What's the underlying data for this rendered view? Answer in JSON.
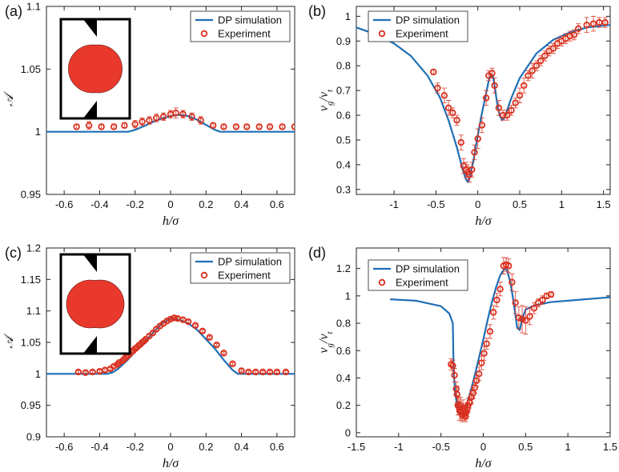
{
  "figure": {
    "panels": [
      "(a)",
      "(b)",
      "(c)",
      "(d)"
    ]
  },
  "colors": {
    "simulation": "#1f6fb5",
    "experiment": "#d9301e",
    "axes": "#222222",
    "particle_fill": "#e8392c"
  },
  "chart_data": [
    {
      "id": "a",
      "type": "line+scatter",
      "panel_label": "(a)",
      "xlabel": "h/σ",
      "ylabel": "𝒜",
      "xlim": [
        -0.7,
        0.7
      ],
      "ylim": [
        0.95,
        1.1
      ],
      "xticks": [
        "-0.6",
        "-0.4",
        "-0.2",
        "0",
        "0.2",
        "0.4",
        "0.6"
      ],
      "yticks": [
        "0.95",
        "1",
        "1.05",
        "1.1"
      ],
      "xtick_values": [
        -0.6,
        -0.4,
        -0.2,
        0,
        0.2,
        0.4,
        0.6
      ],
      "ytick_values": [
        0.95,
        1.0,
        1.05,
        1.1
      ],
      "legend": {
        "position": "top-right",
        "entries": [
          "DP simulation",
          "Experiment"
        ]
      },
      "inset": {
        "particle": "two-lobed",
        "lobe_offset": 0.12
      },
      "series": [
        {
          "name": "DP simulation",
          "kind": "line",
          "x": [
            -0.7,
            -0.24,
            -0.2,
            -0.15,
            -0.1,
            -0.05,
            0,
            0.05,
            0.1,
            0.15,
            0.2,
            0.25,
            0.28,
            0.7
          ],
          "y": [
            1.0,
            1.0,
            1.0015,
            1.0045,
            1.0078,
            1.0105,
            1.0125,
            1.0135,
            1.0125,
            1.0095,
            1.0055,
            1.0015,
            1.0,
            1.0
          ]
        },
        {
          "name": "Experiment",
          "kind": "scatter",
          "x": [
            -0.53,
            -0.46,
            -0.39,
            -0.32,
            -0.26,
            -0.2,
            -0.16,
            -0.12,
            -0.08,
            -0.04,
            0,
            0.03,
            0.07,
            0.12,
            0.17,
            0.24,
            0.3,
            0.37,
            0.43,
            0.5,
            0.56,
            0.63,
            0.7
          ],
          "y": [
            1.004,
            1.005,
            1.004,
            1.004,
            1.005,
            1.006,
            1.008,
            1.009,
            1.011,
            1.012,
            1.014,
            1.015,
            1.014,
            1.012,
            1.009,
            1.005,
            1.004,
            1.004,
            1.004,
            1.004,
            1.004,
            1.004,
            1.004
          ],
          "err": [
            0.002,
            0.003,
            0.002,
            0.002,
            0.002,
            0.003,
            0.003,
            0.003,
            0.003,
            0.003,
            0.003,
            0.004,
            0.003,
            0.003,
            0.003,
            0.002,
            0.002,
            0.002,
            0.002,
            0.002,
            0.002,
            0.002,
            0.002
          ]
        }
      ]
    },
    {
      "id": "b",
      "type": "line+scatter",
      "panel_label": "(b)",
      "xlabel": "h/σ",
      "ylabel": "v_g/v_t",
      "xlim": [
        -1.45,
        1.58
      ],
      "ylim": [
        0.28,
        1.04
      ],
      "xticks": [
        "-1",
        "-0.5",
        "0",
        "0.5",
        "1",
        "1.5"
      ],
      "yticks": [
        "0.3",
        "0.4",
        "0.5",
        "0.6",
        "0.7",
        "0.8",
        "0.9",
        "1"
      ],
      "xtick_values": [
        -1,
        -0.5,
        0,
        0.5,
        1,
        1.5
      ],
      "ytick_values": [
        0.3,
        0.4,
        0.5,
        0.6,
        0.7,
        0.8,
        0.9,
        1.0
      ],
      "legend": {
        "position": "top-left",
        "entries": [
          "DP simulation",
          "Experiment"
        ]
      },
      "series": [
        {
          "name": "DP simulation",
          "kind": "line",
          "x": [
            -1.45,
            -1.2,
            -1.0,
            -0.8,
            -0.6,
            -0.45,
            -0.35,
            -0.25,
            -0.18,
            -0.14,
            -0.12,
            -0.1,
            -0.05,
            0.0,
            0.05,
            0.1,
            0.13,
            0.16,
            0.18,
            0.2,
            0.23,
            0.26,
            0.29,
            0.32,
            0.35,
            0.4,
            0.5,
            0.7,
            0.9,
            1.1,
            1.3,
            1.58
          ],
          "y": [
            0.955,
            0.925,
            0.89,
            0.84,
            0.76,
            0.67,
            0.58,
            0.47,
            0.38,
            0.34,
            0.33,
            0.345,
            0.42,
            0.52,
            0.61,
            0.69,
            0.74,
            0.765,
            0.76,
            0.72,
            0.65,
            0.6,
            0.58,
            0.59,
            0.62,
            0.67,
            0.75,
            0.85,
            0.905,
            0.935,
            0.955,
            0.965
          ]
        },
        {
          "name": "Experiment",
          "kind": "scatter",
          "x": [
            -0.53,
            -0.48,
            -0.4,
            -0.35,
            -0.3,
            -0.25,
            -0.2,
            -0.17,
            -0.14,
            -0.12,
            -0.1,
            -0.07,
            -0.04,
            0,
            0.05,
            0.1,
            0.13,
            0.17,
            0.2,
            0.25,
            0.3,
            0.35,
            0.4,
            0.45,
            0.5,
            0.55,
            0.6,
            0.65,
            0.7,
            0.75,
            0.8,
            0.85,
            0.9,
            0.95,
            1.0,
            1.05,
            1.1,
            1.15,
            1.2,
            1.3,
            1.38,
            1.45,
            1.52
          ],
          "y": [
            0.775,
            0.71,
            0.68,
            0.63,
            0.61,
            0.58,
            0.49,
            0.395,
            0.38,
            0.37,
            0.36,
            0.38,
            0.45,
            0.505,
            0.56,
            0.67,
            0.76,
            0.77,
            0.72,
            0.63,
            0.6,
            0.6,
            0.62,
            0.65,
            0.68,
            0.72,
            0.76,
            0.78,
            0.8,
            0.82,
            0.84,
            0.86,
            0.87,
            0.89,
            0.9,
            0.91,
            0.92,
            0.925,
            0.95,
            0.965,
            0.97,
            0.975,
            0.975
          ],
          "err": [
            0.01,
            0.02,
            0.03,
            0.03,
            0.02,
            0.02,
            0.03,
            0.03,
            0.03,
            0.03,
            0.03,
            0.03,
            0.03,
            0.04,
            0.03,
            0.03,
            0.02,
            0.02,
            0.03,
            0.03,
            0.02,
            0.02,
            0.02,
            0.02,
            0.03,
            0.03,
            0.02,
            0.03,
            0.02,
            0.02,
            0.02,
            0.02,
            0.02,
            0.02,
            0.02,
            0.02,
            0.02,
            0.02,
            0.02,
            0.03,
            0.03,
            0.02,
            0.02
          ]
        }
      ]
    },
    {
      "id": "c",
      "type": "line+scatter",
      "panel_label": "(c)",
      "xlabel": "h/σ",
      "ylabel": "𝒜",
      "xlim": [
        -0.7,
        0.7
      ],
      "ylim": [
        0.9,
        1.2
      ],
      "xticks": [
        "-0.6",
        "-0.4",
        "-0.2",
        "0",
        "0.2",
        "0.4",
        "0.6"
      ],
      "yticks": [
        "0.9",
        "0.95",
        "1",
        "1.05",
        "1.1",
        "1.15",
        "1.2"
      ],
      "xtick_values": [
        -0.6,
        -0.4,
        -0.2,
        0,
        0.2,
        0.4,
        0.6
      ],
      "ytick_values": [
        0.9,
        0.95,
        1.0,
        1.05,
        1.1,
        1.15,
        1.2
      ],
      "legend": {
        "position": "top-right",
        "entries": [
          "DP simulation",
          "Experiment"
        ]
      },
      "inset": {
        "particle": "two-lobed",
        "lobe_offset": 0.2
      },
      "series": [
        {
          "name": "DP simulation",
          "kind": "line",
          "x": [
            -0.7,
            -0.36,
            -0.33,
            -0.3,
            -0.25,
            -0.2,
            -0.15,
            -0.1,
            -0.05,
            0,
            0.05,
            0.1,
            0.15,
            0.2,
            0.25,
            0.3,
            0.35,
            0.38,
            0.7
          ],
          "y": [
            1.0,
            1.0,
            1.002,
            1.007,
            1.02,
            1.035,
            1.05,
            1.065,
            1.08,
            1.088,
            1.086,
            1.08,
            1.07,
            1.055,
            1.04,
            1.022,
            1.006,
            1.0,
            1.0
          ]
        },
        {
          "name": "Experiment",
          "kind": "scatter",
          "x": [
            -0.52,
            -0.48,
            -0.44,
            -0.4,
            -0.37,
            -0.34,
            -0.32,
            -0.3,
            -0.29,
            -0.27,
            -0.26,
            -0.25,
            -0.24,
            -0.23,
            -0.22,
            -0.21,
            -0.2,
            -0.19,
            -0.18,
            -0.17,
            -0.16,
            -0.15,
            -0.14,
            -0.12,
            -0.1,
            -0.08,
            -0.06,
            -0.04,
            -0.02,
            0,
            0.02,
            0.04,
            0.07,
            0.1,
            0.14,
            0.18,
            0.22,
            0.26,
            0.3,
            0.35,
            0.4,
            0.44,
            0.48,
            0.52,
            0.56,
            0.6,
            0.65
          ],
          "y": [
            1.003,
            1.002,
            1.003,
            1.004,
            1.006,
            1.008,
            1.012,
            1.015,
            1.018,
            1.021,
            1.024,
            1.027,
            1.029,
            1.032,
            1.035,
            1.037,
            1.04,
            1.042,
            1.045,
            1.047,
            1.05,
            1.052,
            1.055,
            1.06,
            1.065,
            1.071,
            1.076,
            1.08,
            1.084,
            1.087,
            1.089,
            1.088,
            1.086,
            1.083,
            1.077,
            1.068,
            1.058,
            1.046,
            1.033,
            1.016,
            1.005,
            1.003,
            1.003,
            1.003,
            1.003,
            1.003,
            1.003
          ],
          "err": [
            0.002,
            0.002,
            0.002,
            0.002,
            0.002,
            0.002,
            0.002,
            0.002,
            0.002,
            0.002,
            0.002,
            0.002,
            0.002,
            0.002,
            0.002,
            0.002,
            0.002,
            0.002,
            0.002,
            0.002,
            0.002,
            0.002,
            0.002,
            0.002,
            0.002,
            0.002,
            0.002,
            0.002,
            0.002,
            0.002,
            0.002,
            0.002,
            0.002,
            0.002,
            0.002,
            0.002,
            0.002,
            0.002,
            0.002,
            0.002,
            0.002,
            0.002,
            0.002,
            0.002,
            0.002,
            0.002,
            0.002
          ]
        }
      ]
    },
    {
      "id": "d",
      "type": "line+scatter",
      "panel_label": "(d)",
      "xlabel": "h/σ",
      "ylabel": "v_g/v_t",
      "xlim": [
        -1.5,
        1.5
      ],
      "ylim": [
        -0.03,
        1.35
      ],
      "xticks": [
        "-1.5",
        "-1",
        "-0.5",
        "0",
        "0.5",
        "1",
        "1.5"
      ],
      "yticks": [
        "0",
        "0.2",
        "0.4",
        "0.6",
        "0.8",
        "1",
        "1.2"
      ],
      "xtick_values": [
        -1.5,
        -1,
        -0.5,
        0,
        0.5,
        1,
        1.5
      ],
      "ytick_values": [
        0,
        0.2,
        0.4,
        0.6,
        0.8,
        1.0,
        1.2
      ],
      "legend": {
        "position": "top-left",
        "entries": [
          "DP simulation",
          "Experiment"
        ]
      },
      "series": [
        {
          "name": "DP simulation",
          "kind": "line",
          "x": [
            -1.1,
            -0.8,
            -0.5,
            -0.4,
            -0.36,
            -0.35,
            -0.33,
            -0.3,
            -0.27,
            -0.24,
            -0.2,
            -0.15,
            -0.1,
            -0.05,
            0,
            0.05,
            0.1,
            0.15,
            0.2,
            0.25,
            0.28,
            0.32,
            0.36,
            0.4,
            0.43,
            0.46,
            0.5,
            0.6,
            0.8,
            1.1,
            1.5
          ],
          "y": [
            0.975,
            0.965,
            0.925,
            0.87,
            0.8,
            0.45,
            0.28,
            0.17,
            0.13,
            0.14,
            0.2,
            0.3,
            0.42,
            0.55,
            0.68,
            0.82,
            0.95,
            1.06,
            1.15,
            1.2,
            1.19,
            1.1,
            0.95,
            0.77,
            0.75,
            0.83,
            0.9,
            0.93,
            0.955,
            0.97,
            0.99
          ]
        },
        {
          "name": "Experiment",
          "kind": "scatter",
          "x": [
            -0.38,
            -0.36,
            -0.34,
            -0.32,
            -0.31,
            -0.3,
            -0.29,
            -0.28,
            -0.27,
            -0.26,
            -0.25,
            -0.24,
            -0.23,
            -0.22,
            -0.21,
            -0.2,
            -0.19,
            -0.18,
            -0.16,
            -0.14,
            -0.12,
            -0.1,
            -0.08,
            -0.05,
            -0.02,
            0.01,
            0.04,
            0.08,
            0.12,
            0.16,
            0.2,
            0.24,
            0.27,
            0.3,
            0.34,
            0.38,
            0.42,
            0.46,
            0.5,
            0.55,
            0.6,
            0.65,
            0.7,
            0.75,
            0.8
          ],
          "y": [
            0.5,
            0.49,
            0.42,
            0.32,
            0.28,
            0.2,
            0.19,
            0.16,
            0.2,
            0.15,
            0.13,
            0.18,
            0.16,
            0.14,
            0.12,
            0.15,
            0.17,
            0.2,
            0.22,
            0.26,
            0.29,
            0.33,
            0.38,
            0.43,
            0.51,
            0.58,
            0.65,
            0.74,
            0.88,
            0.97,
            1.05,
            1.22,
            1.23,
            1.22,
            1.1,
            0.95,
            0.84,
            0.83,
            0.82,
            0.85,
            0.91,
            0.95,
            0.97,
            1.0,
            1.01
          ],
          "err": [
            0.04,
            0.04,
            0.05,
            0.05,
            0.06,
            0.07,
            0.06,
            0.07,
            0.06,
            0.05,
            0.05,
            0.06,
            0.05,
            0.05,
            0.04,
            0.05,
            0.05,
            0.05,
            0.04,
            0.05,
            0.04,
            0.04,
            0.04,
            0.05,
            0.05,
            0.05,
            0.04,
            0.05,
            0.05,
            0.05,
            0.05,
            0.06,
            0.05,
            0.05,
            0.06,
            0.08,
            0.08,
            0.1,
            0.1,
            0.06,
            0.04,
            0.03,
            0.03,
            0.02,
            0.02
          ]
        }
      ]
    }
  ]
}
